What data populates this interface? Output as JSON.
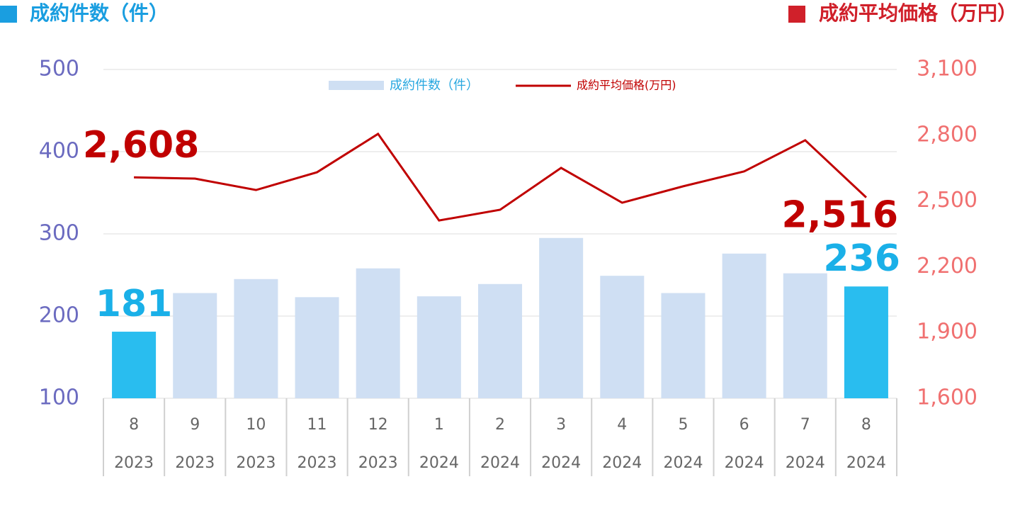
{
  "chart_data": {
    "type": "bar-line",
    "title": "成約件数（件）",
    "title2": "成約平均価格（万円）",
    "title_color": "#1a9ee0",
    "title2_color": "#d0202a",
    "categories": [
      "8",
      "9",
      "10",
      "11",
      "12",
      "1",
      "2",
      "3",
      "4",
      "5",
      "6",
      "7",
      "8"
    ],
    "years": [
      "2023",
      "2023",
      "2023",
      "2023",
      "2023",
      "2024",
      "2024",
      "2024",
      "2024",
      "2024",
      "2024",
      "2024",
      "2024"
    ],
    "series": [
      {
        "name": "成約件数（件）",
        "type": "bar",
        "color": "#cfdff3",
        "colors": [
          "#29bdef",
          "#cfdff3",
          "#cfdff3",
          "#cfdff3",
          "#cfdff3",
          "#cfdff3",
          "#cfdff3",
          "#cfdff3",
          "#cfdff3",
          "#cfdff3",
          "#cfdff3",
          "#cfdff3",
          "#29bdef"
        ],
        "label_color": "#1ab0e8",
        "values": [
          181,
          228,
          245,
          223,
          258,
          224,
          239,
          295,
          249,
          228,
          276,
          252,
          236
        ],
        "value_labels": [
          "181",
          null,
          null,
          null,
          null,
          null,
          null,
          null,
          null,
          null,
          null,
          null,
          "236"
        ]
      },
      {
        "name": "成約平均価格(万円)",
        "type": "line",
        "axis": "y2",
        "color": "#c00000",
        "label_color": "#c00000",
        "values": [
          2608,
          2602,
          2550,
          2631,
          2806,
          2411,
          2460,
          2651,
          2492,
          2567,
          2635,
          2777,
          2516
        ],
        "value_labels": [
          "2,608",
          null,
          null,
          null,
          null,
          null,
          null,
          null,
          null,
          null,
          null,
          null,
          "2,516"
        ]
      }
    ],
    "ylim": [
      100,
      500
    ],
    "yticks": [
      100,
      200,
      300,
      400,
      500
    ],
    "y2lim": [
      1600,
      3100
    ],
    "y2ticks": [
      {
        "value": 1600,
        "label": "1,600"
      },
      {
        "value": 1900,
        "label": "1,900"
      },
      {
        "value": 2200,
        "label": "2,200"
      },
      {
        "value": 2500,
        "label": "2,500"
      },
      {
        "value": 2800,
        "label": "2,800"
      },
      {
        "value": 3100,
        "label": "3,100"
      }
    ],
    "ytick_color": "#6b6bc0",
    "y2tick_color": "#f07070",
    "grid": true,
    "legend": "top"
  }
}
